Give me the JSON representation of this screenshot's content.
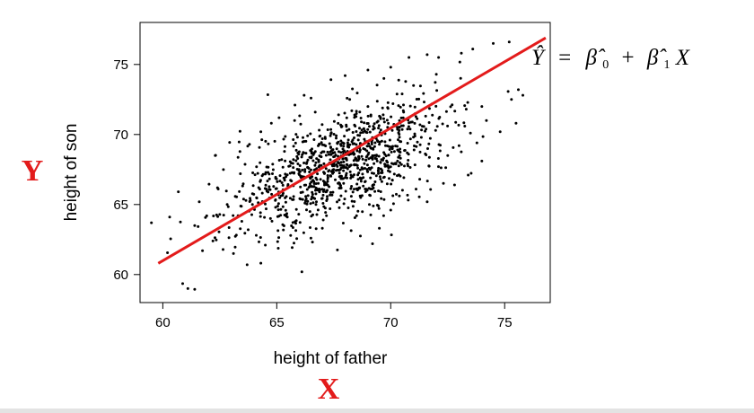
{
  "chart_data": {
    "type": "scatter",
    "title": "",
    "xlabel": "height of father",
    "ylabel": "height of son",
    "xlim": [
      59,
      77
    ],
    "ylim": [
      58,
      78
    ],
    "x_ticks": [
      60,
      65,
      70,
      75
    ],
    "y_ticks": [
      60,
      65,
      70,
      75
    ],
    "grid": false,
    "point_count_estimate": 1078,
    "point_color": "#000000",
    "fit_line": {
      "x": [
        59.8,
        76.8
      ],
      "y": [
        60.8,
        76.9
      ],
      "color": "#e31b1b"
    },
    "annotation_y": "Y",
    "annotation_x": "X",
    "annotation_color": "#e31b1b",
    "equation": {
      "yhat": "Ŷ",
      "eq": "=",
      "b0": "β̂",
      "sub0": "0",
      "plus": "+",
      "b1": "β̂",
      "sub1": "1",
      "x": "X"
    },
    "points": [
      [
        59.5,
        63.7
      ],
      [
        60.3,
        64.1
      ],
      [
        61.1,
        59
      ],
      [
        61.4,
        63.5
      ],
      [
        61.6,
        65.2
      ],
      [
        62.2,
        62.4
      ],
      [
        62.4,
        66.2
      ],
      [
        62.3,
        68.5
      ],
      [
        63.3,
        64.2
      ],
      [
        63.1,
        61.5
      ],
      [
        63.7,
        60.7
      ],
      [
        64.1,
        62.8
      ],
      [
        64.5,
        62.1
      ],
      [
        63.8,
        69.3
      ],
      [
        64.3,
        70.2
      ],
      [
        65.1,
        71.2
      ],
      [
        65.8,
        72.1
      ],
      [
        66.2,
        72.8
      ],
      [
        66.1,
        60.2
      ],
      [
        66.5,
        62.6
      ],
      [
        67.0,
        63.3
      ],
      [
        68.5,
        64.2
      ],
      [
        69.2,
        62.2
      ],
      [
        69.5,
        63.3
      ],
      [
        70.0,
        64.6
      ],
      [
        68.0,
        74.2
      ],
      [
        69.0,
        74.6
      ],
      [
        70.0,
        74.8
      ],
      [
        70.8,
        75.5
      ],
      [
        71.6,
        75.7
      ],
      [
        72.1,
        75.5
      ],
      [
        73.1,
        75.8
      ],
      [
        73.6,
        76.1
      ],
      [
        75.2,
        76.6
      ],
      [
        74.5,
        76.5
      ],
      [
        75.6,
        73.2
      ],
      [
        75.8,
        72.8
      ],
      [
        75.3,
        72.5
      ],
      [
        75.5,
        70.8
      ],
      [
        74.2,
        71.0
      ],
      [
        74.0,
        68.1
      ],
      [
        73.4,
        67.1
      ],
      [
        72.8,
        66.4
      ],
      [
        71.6,
        65.2
      ],
      [
        72.5,
        68.5
      ],
      [
        73.0,
        69.2
      ],
      [
        73.5,
        70.1
      ],
      [
        74.0,
        72.0
      ],
      [
        72.0,
        74.3
      ],
      [
        71.0,
        73.5
      ],
      [
        70.5,
        72.9
      ],
      [
        69.7,
        74.0
      ],
      [
        69.0,
        72.0
      ],
      [
        68.2,
        72.5
      ]
    ],
    "fill": {
      "seed": 137,
      "clusters": [
        {
          "n": 950,
          "mx": 68.0,
          "my": 68.0,
          "sx": 2.2,
          "sy": 2.2,
          "rho": 0.52
        },
        {
          "n": 74,
          "mx": 64.5,
          "my": 65.3,
          "sx": 1.6,
          "sy": 2.2,
          "rho": 0.35
        }
      ]
    }
  }
}
